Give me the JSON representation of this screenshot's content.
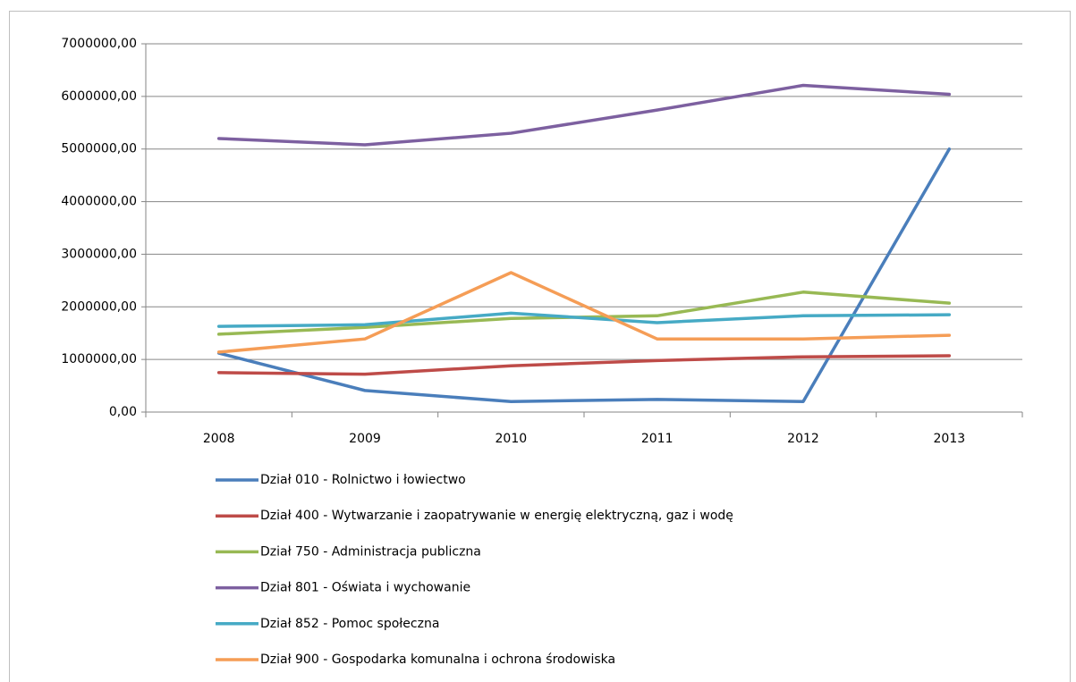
{
  "chart_data": {
    "type": "line",
    "categories": [
      "2008",
      "2009",
      "2010",
      "2011",
      "2012",
      "2013"
    ],
    "series": [
      {
        "name": "Dział 010 - Rolnictwo i łowiectwo",
        "color": "#4a7ebb",
        "values": [
          1120000,
          410000,
          200000,
          240000,
          200000,
          5000000
        ]
      },
      {
        "name": "Dział 400 - Wytwarzanie i zaopatrywanie  w energię elektryczną, gaz i wodę",
        "color": "#be4b48",
        "values": [
          750000,
          720000,
          880000,
          980000,
          1050000,
          1070000
        ]
      },
      {
        "name": "Dział 750 - Administracja publiczna",
        "color": "#98b954",
        "values": [
          1480000,
          1610000,
          1780000,
          1830000,
          2280000,
          2070000
        ]
      },
      {
        "name": "Dział 801 - Oświata i wychowanie",
        "color": "#7d60a0",
        "values": [
          5200000,
          5080000,
          5300000,
          5740000,
          6210000,
          6040000
        ]
      },
      {
        "name": "Dział 852 - Pomoc społeczna",
        "color": "#46aac5",
        "values": [
          1630000,
          1660000,
          1880000,
          1700000,
          1830000,
          1850000
        ]
      },
      {
        "name": "Dział 900 - Gospodarka komunalna i ochrona środowiska",
        "color": "#f59d56",
        "values": [
          1140000,
          1390000,
          2650000,
          1390000,
          1390000,
          1460000
        ]
      }
    ],
    "ylim": [
      0,
      7000000
    ],
    "yticks": [
      {
        "value": 0,
        "label": "0,00"
      },
      {
        "value": 1000000,
        "label": "1000000,00"
      },
      {
        "value": 2000000,
        "label": "2000000,00"
      },
      {
        "value": 3000000,
        "label": "3000000,00"
      },
      {
        "value": 4000000,
        "label": "4000000,00"
      },
      {
        "value": 5000000,
        "label": "5000000,00"
      },
      {
        "value": 6000000,
        "label": "6000000,00"
      },
      {
        "value": 7000000,
        "label": "7000000,00"
      }
    ],
    "grid": true,
    "legend": "bottom"
  }
}
